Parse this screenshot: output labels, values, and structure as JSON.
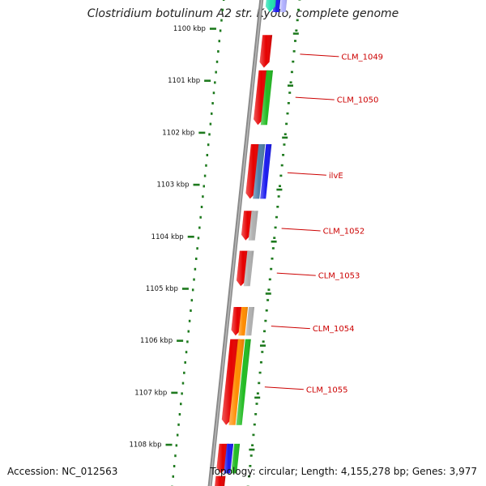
{
  "title": "Clostridium botulinum A2 str. Kyoto, complete genome",
  "footer": {
    "accession": "Accession: NC_012563",
    "summary": "Topology: circular; Length: 4,155,278 bp; Genes: 3,977"
  },
  "colors": {
    "gene_red": "#e60000",
    "tick_green": "#1e7a1e",
    "label_red": "#cc0000",
    "backbone": "#8a8a8a",
    "green": "#22bb22",
    "blue": "#1a1aee",
    "grey": "#b0b0b0",
    "orange": "#ff8c00",
    "steel": "#4f7fa8",
    "teal": "#20e0b0",
    "lavender": "#b0b0ff"
  },
  "ruler": [
    {
      "label": "1100 kbp",
      "kbp": 1100
    },
    {
      "label": "1101 kbp",
      "kbp": 1101
    },
    {
      "label": "1102 kbp",
      "kbp": 1102
    },
    {
      "label": "1103 kbp",
      "kbp": 1103
    },
    {
      "label": "1104 kbp",
      "kbp": 1104
    },
    {
      "label": "1105 kbp",
      "kbp": 1105
    },
    {
      "label": "1106 kbp",
      "kbp": 1106
    },
    {
      "label": "1107 kbp",
      "kbp": 1107
    },
    {
      "label": "1108 kbp",
      "kbp": 1108
    }
  ],
  "genes": [
    {
      "name": "",
      "start_kbp": 1099.43,
      "end_kbp": 1099.68,
      "color": "blue",
      "lane": 1
    },
    {
      "name": "",
      "start_kbp": 1099.43,
      "end_kbp": 1099.68,
      "color": "teal",
      "lane": 0
    },
    {
      "name": "",
      "start_kbp": 1099.43,
      "end_kbp": 1099.68,
      "color": "lavender",
      "lane": 2
    },
    {
      "name": "CLM_1049",
      "start_kbp": 1100.12,
      "end_kbp": 1100.75,
      "color": "gene_red",
      "lane": 0,
      "label_kbp": 1100.52
    },
    {
      "name": "CLM_1050",
      "start_kbp": 1100.8,
      "end_kbp": 1101.85,
      "color": "gene_red",
      "lane": 0,
      "label_kbp": 1101.35
    },
    {
      "name": "",
      "start_kbp": 1100.8,
      "end_kbp": 1101.85,
      "color": "green",
      "lane": 1
    },
    {
      "name": "ilvE",
      "start_kbp": 1102.22,
      "end_kbp": 1103.27,
      "color": "gene_red",
      "lane": 0,
      "label_kbp": 1102.8
    },
    {
      "name": "",
      "start_kbp": 1102.22,
      "end_kbp": 1103.27,
      "color": "steel",
      "lane": 1
    },
    {
      "name": "",
      "start_kbp": 1102.22,
      "end_kbp": 1103.27,
      "color": "blue",
      "lane": 2
    },
    {
      "name": "CLM_1052",
      "start_kbp": 1103.5,
      "end_kbp": 1104.07,
      "color": "gene_red",
      "lane": 0,
      "label_kbp": 1103.87
    },
    {
      "name": "",
      "start_kbp": 1103.5,
      "end_kbp": 1104.07,
      "color": "grey",
      "lane": 1
    },
    {
      "name": "CLM_1053",
      "start_kbp": 1104.27,
      "end_kbp": 1104.95,
      "color": "gene_red",
      "lane": 0,
      "label_kbp": 1104.73
    },
    {
      "name": "",
      "start_kbp": 1104.27,
      "end_kbp": 1104.95,
      "color": "grey",
      "lane": 1
    },
    {
      "name": "CLM_1054",
      "start_kbp": 1105.35,
      "end_kbp": 1105.9,
      "color": "gene_red",
      "lane": 0,
      "label_kbp": 1105.75
    },
    {
      "name": "",
      "start_kbp": 1105.35,
      "end_kbp": 1105.9,
      "color": "orange",
      "lane": 1
    },
    {
      "name": "",
      "start_kbp": 1105.35,
      "end_kbp": 1105.9,
      "color": "grey",
      "lane": 2
    },
    {
      "name": "CLM_1055",
      "start_kbp": 1105.97,
      "end_kbp": 1107.62,
      "color": "gene_red",
      "lane": 0,
      "label_kbp": 1106.92
    },
    {
      "name": "",
      "start_kbp": 1105.97,
      "end_kbp": 1107.62,
      "color": "orange",
      "lane": 1
    },
    {
      "name": "",
      "start_kbp": 1105.97,
      "end_kbp": 1107.62,
      "color": "green",
      "lane": 2
    },
    {
      "name": "",
      "start_kbp": 1107.98,
      "end_kbp": 1108.55,
      "color": "gene_red",
      "lane": 0
    },
    {
      "name": "",
      "start_kbp": 1107.98,
      "end_kbp": 1108.55,
      "color": "blue",
      "lane": 1
    },
    {
      "name": "",
      "start_kbp": 1107.98,
      "end_kbp": 1108.55,
      "color": "green",
      "lane": 2
    },
    {
      "name": "",
      "start_kbp": 1108.6,
      "end_kbp": 1109.0,
      "color": "gene_red",
      "lane": 0
    }
  ]
}
